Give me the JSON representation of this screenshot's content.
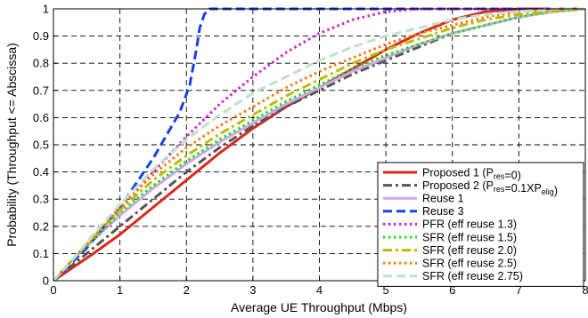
{
  "chart_data": {
    "type": "line",
    "title": "",
    "xlabel": "Average UE Throughput (Mbps)",
    "ylabel": "Probability (Throughput <= Abscissa)",
    "xlim": [
      0,
      8
    ],
    "ylim": [
      0,
      1
    ],
    "xticks": [
      "0",
      "1",
      "2",
      "3",
      "4",
      "5",
      "6",
      "7",
      "8"
    ],
    "yticks": [
      "0",
      "0.1",
      "0.2",
      "0.3",
      "0.4",
      "0.5",
      "0.6",
      "0.7",
      "0.8",
      "0.9",
      "1"
    ],
    "grid": true,
    "legend_position": "bottom-right",
    "series": [
      {
        "name": "Proposed 1 (Pres=0)",
        "label_parts": [
          [
            "Proposed 1 (P",
            ""
          ],
          [
            "res",
            "sub"
          ],
          [
            "=0)",
            ""
          ]
        ],
        "color": "#d62a1c",
        "dash": "solid",
        "width": 3,
        "x": [
          0,
          0.3,
          0.6,
          1.0,
          1.5,
          2.0,
          2.5,
          3.0,
          3.5,
          4.0,
          4.5,
          5.0,
          5.5,
          6.0,
          6.5,
          7.0,
          8.0
        ],
        "y": [
          0,
          0.05,
          0.1,
          0.17,
          0.27,
          0.37,
          0.47,
          0.56,
          0.64,
          0.71,
          0.78,
          0.85,
          0.91,
          0.96,
          0.99,
          1.0,
          1.0
        ]
      },
      {
        "name": "Proposed 2 (Pres=0.1XPelig)",
        "label_parts": [
          [
            "Proposed 2 (P",
            ""
          ],
          [
            "res",
            "sub"
          ],
          [
            "=0.1XP",
            ""
          ],
          [
            "elig",
            "sub"
          ],
          [
            ")",
            ""
          ]
        ],
        "color": "#555555",
        "dash": "dashdot",
        "width": 3,
        "x": [
          0,
          0.3,
          0.6,
          1.0,
          1.5,
          2.0,
          2.5,
          3.0,
          3.5,
          4.0,
          4.5,
          5.0,
          5.5,
          6.0,
          6.5,
          7.0,
          7.5,
          8.0
        ],
        "y": [
          0,
          0.06,
          0.12,
          0.2,
          0.3,
          0.4,
          0.49,
          0.57,
          0.64,
          0.7,
          0.76,
          0.81,
          0.86,
          0.91,
          0.94,
          0.97,
          0.99,
          1.0
        ]
      },
      {
        "name": "Reuse 1",
        "label_parts": [
          [
            "Reuse 1",
            ""
          ]
        ],
        "color": "#cfa8e8",
        "dash": "solid",
        "width": 3,
        "x": [
          0,
          0.3,
          0.6,
          1.0,
          1.5,
          2.0,
          2.5,
          3.0,
          3.5,
          4.0,
          4.5,
          5.0,
          5.5,
          6.0,
          6.5,
          7.0,
          7.5,
          8.0
        ],
        "y": [
          0,
          0.08,
          0.15,
          0.24,
          0.34,
          0.43,
          0.51,
          0.58,
          0.65,
          0.71,
          0.77,
          0.82,
          0.87,
          0.91,
          0.94,
          0.97,
          0.99,
          1.0
        ]
      },
      {
        "name": "Reuse 3",
        "label_parts": [
          [
            "Reuse 3",
            ""
          ]
        ],
        "color": "#1a3ee8",
        "dash": "dash",
        "width": 3,
        "x": [
          0,
          0.5,
          1.0,
          1.5,
          1.9,
          2.05,
          2.15,
          2.2,
          2.27,
          2.35,
          2.45,
          8.0
        ],
        "y": [
          0,
          0.12,
          0.27,
          0.45,
          0.62,
          0.72,
          0.85,
          0.93,
          0.98,
          1.0,
          1.0,
          1.0
        ]
      },
      {
        "name": "PFR (eff reuse 1.3)",
        "label_parts": [
          [
            "PFR (eff reuse 1.3)",
            ""
          ]
        ],
        "color": "#cc22cc",
        "dash": "dot",
        "width": 3,
        "x": [
          0,
          0.5,
          1.0,
          1.5,
          2.0,
          2.5,
          3.0,
          3.5,
          4.0,
          4.5,
          5.0,
          5.5,
          6.0,
          8.0
        ],
        "y": [
          0,
          0.13,
          0.26,
          0.4,
          0.53,
          0.65,
          0.75,
          0.84,
          0.91,
          0.96,
          0.99,
          1.0,
          1.0,
          1.0
        ]
      },
      {
        "name": "SFR (eff reuse 1.5)",
        "label_parts": [
          [
            "SFR (eff reuse 1.5)",
            ""
          ]
        ],
        "color": "#22dd22",
        "dash": "dot",
        "width": 3,
        "x": [
          0,
          0.3,
          0.6,
          1.0,
          1.5,
          2.0,
          2.5,
          3.0,
          3.5,
          4.0,
          4.5,
          5.0,
          5.5,
          6.0,
          6.5,
          7.0,
          7.5,
          8.0
        ],
        "y": [
          0,
          0.08,
          0.15,
          0.25,
          0.35,
          0.44,
          0.52,
          0.59,
          0.66,
          0.72,
          0.78,
          0.83,
          0.87,
          0.91,
          0.94,
          0.97,
          0.99,
          1.0
        ]
      },
      {
        "name": "SFR (eff reuse 2.0)",
        "label_parts": [
          [
            "SFR (eff reuse 2.0)",
            ""
          ]
        ],
        "color": "#c2b800",
        "dash": "dashdot",
        "width": 3,
        "x": [
          0,
          0.3,
          0.6,
          1.0,
          1.5,
          2.0,
          2.5,
          3.0,
          3.5,
          4.0,
          4.5,
          5.0,
          5.5,
          6.0,
          6.5,
          7.0,
          7.5,
          8.0
        ],
        "y": [
          0,
          0.08,
          0.16,
          0.26,
          0.37,
          0.46,
          0.54,
          0.61,
          0.68,
          0.74,
          0.8,
          0.85,
          0.89,
          0.93,
          0.96,
          0.98,
          0.99,
          1.0
        ]
      },
      {
        "name": "SFR (eff reuse 2.5)",
        "label_parts": [
          [
            "SFR (eff reuse 2.5)",
            ""
          ]
        ],
        "color": "#ee7a10",
        "dash": "dot",
        "width": 3,
        "x": [
          0,
          0.3,
          0.6,
          1.0,
          1.5,
          2.0,
          2.5,
          3.0,
          3.5,
          4.0,
          4.5,
          5.0,
          5.5,
          6.0,
          6.5,
          7.0,
          7.5,
          8.0
        ],
        "y": [
          0,
          0.08,
          0.16,
          0.27,
          0.39,
          0.49,
          0.57,
          0.64,
          0.71,
          0.77,
          0.82,
          0.87,
          0.91,
          0.94,
          0.97,
          0.99,
          1.0,
          1.0
        ]
      },
      {
        "name": "SFR (eff reuse 2.75)",
        "label_parts": [
          [
            "SFR (eff reuse 2.75)",
            ""
          ]
        ],
        "color": "#bfe0cc",
        "dash": "dash",
        "width": 3,
        "x": [
          0,
          0.3,
          0.6,
          1.0,
          1.5,
          2.0,
          2.5,
          3.0,
          3.5,
          4.0,
          4.5,
          5.0,
          5.5,
          6.0,
          6.5,
          7.0,
          7.5,
          8.0
        ],
        "y": [
          0,
          0.08,
          0.17,
          0.28,
          0.41,
          0.52,
          0.61,
          0.69,
          0.75,
          0.81,
          0.86,
          0.9,
          0.93,
          0.96,
          0.98,
          0.99,
          1.0,
          1.0
        ]
      }
    ]
  }
}
